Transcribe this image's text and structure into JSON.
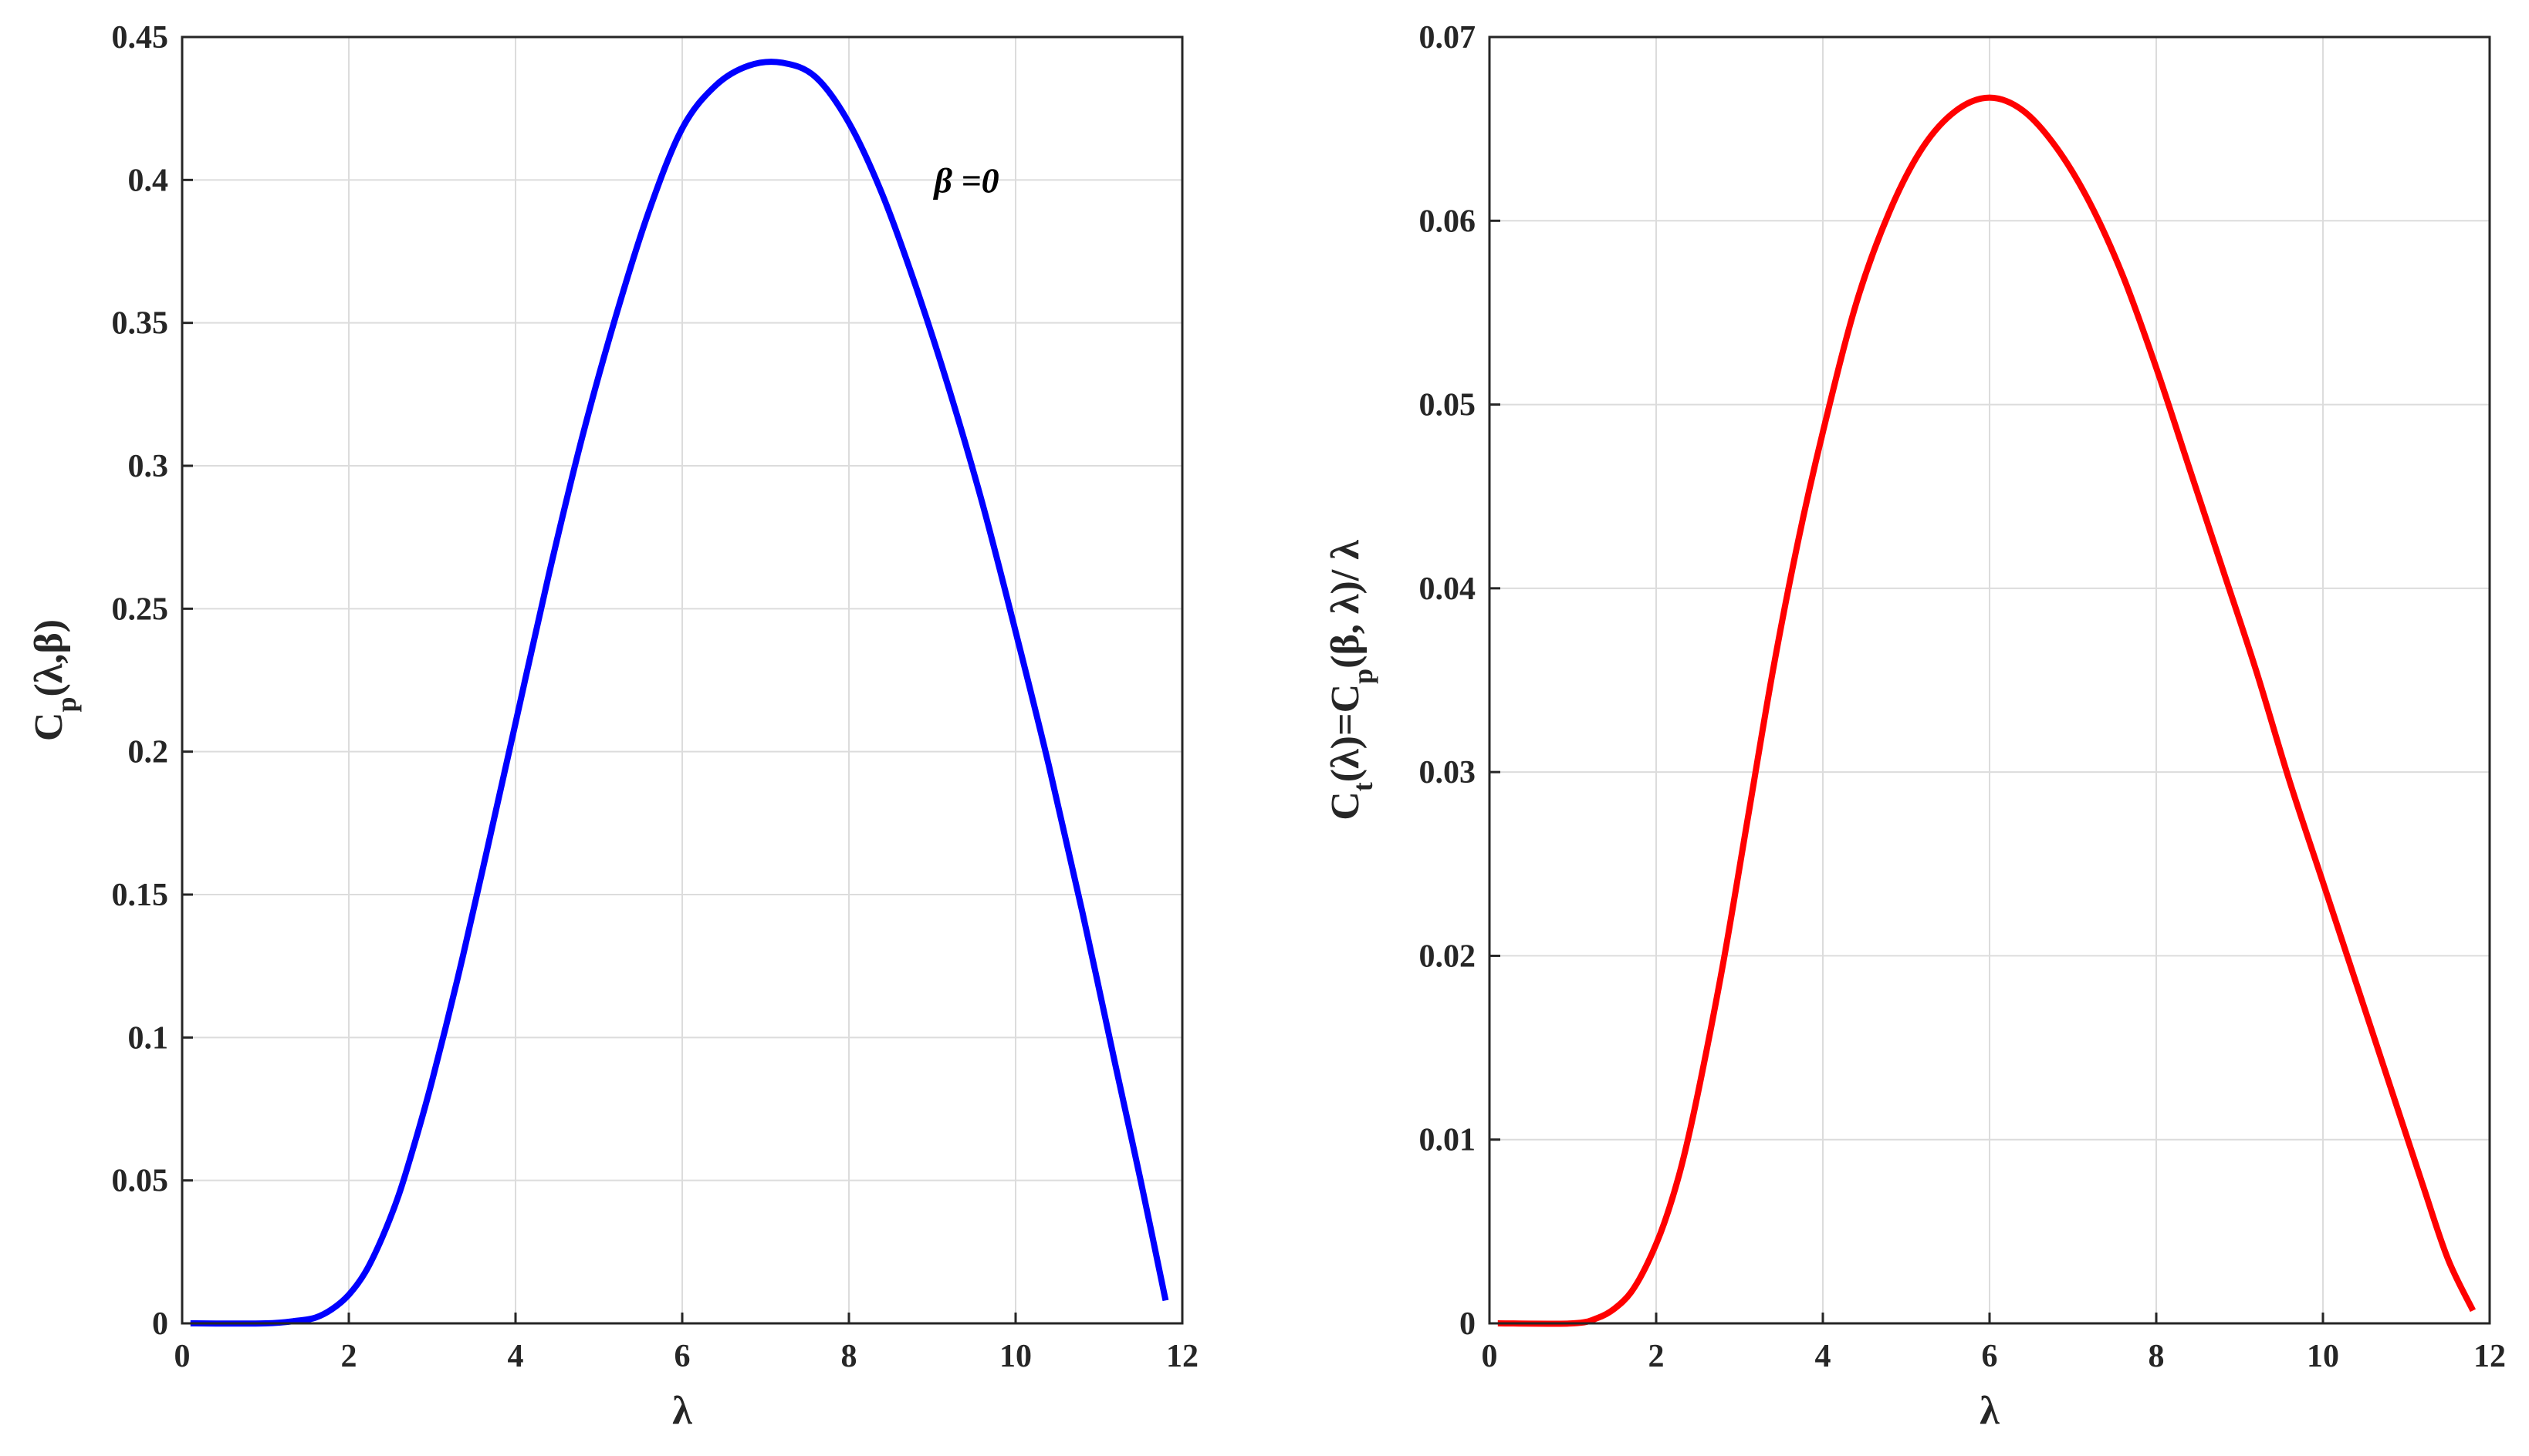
{
  "chart_data": [
    {
      "type": "line",
      "xlabel": "λ",
      "ylabel_parts": [
        "C",
        "p",
        "(λ,β)"
      ],
      "xlim": [
        0,
        12
      ],
      "ylim": [
        0,
        0.45
      ],
      "xticks": [
        0,
        2,
        4,
        6,
        8,
        10,
        12
      ],
      "xtick_labels": [
        "0",
        "2",
        "4",
        "6",
        "8",
        "10",
        "12"
      ],
      "yticks": [
        0,
        0.05,
        0.1,
        0.15,
        0.2,
        0.25,
        0.3,
        0.35,
        0.4,
        0.45
      ],
      "ytick_labels": [
        "0",
        "0.05",
        "0.1",
        "0.15",
        "0.2",
        "0.25",
        "0.3",
        "0.35",
        "0.4",
        "0.45"
      ],
      "grid": true,
      "annotation": {
        "text": "β =0",
        "x": 9.3,
        "y": 0.4
      },
      "series": [
        {
          "color": "#0000ff",
          "x": [
            0.1,
            1.0,
            1.4,
            1.6,
            1.8,
            2.0,
            2.2,
            2.4,
            2.6,
            2.8,
            3.0,
            3.3,
            3.6,
            4.0,
            4.4,
            4.8,
            5.2,
            5.6,
            6.0,
            6.4,
            6.8,
            7.2,
            7.6,
            8.0,
            8.4,
            8.8,
            9.2,
            9.6,
            10.0,
            10.4,
            10.8,
            11.2,
            11.5,
            11.8
          ],
          "y": [
            0.0,
            0.0,
            0.001,
            0.002,
            0.005,
            0.01,
            0.018,
            0.03,
            0.045,
            0.064,
            0.085,
            0.12,
            0.158,
            0.21,
            0.262,
            0.31,
            0.352,
            0.389,
            0.418,
            0.433,
            0.44,
            0.441,
            0.436,
            0.42,
            0.395,
            0.363,
            0.327,
            0.287,
            0.242,
            0.195,
            0.144,
            0.09,
            0.05,
            0.008
          ]
        }
      ]
    },
    {
      "type": "line",
      "xlabel": "λ",
      "ylabel_parts": [
        "C",
        "t",
        "(λ)=C",
        "p",
        "(β, λ)/ λ"
      ],
      "xlim": [
        0,
        12
      ],
      "ylim": [
        0,
        0.07
      ],
      "xticks": [
        0,
        2,
        4,
        6,
        8,
        10,
        12
      ],
      "xtick_labels": [
        "0",
        "2",
        "4",
        "6",
        "8",
        "10",
        "12"
      ],
      "yticks": [
        0,
        0.01,
        0.02,
        0.03,
        0.04,
        0.05,
        0.06,
        0.07
      ],
      "ytick_labels": [
        "0",
        "0.01",
        "0.02",
        "0.03",
        "0.04",
        "0.05",
        "0.06",
        "0.07"
      ],
      "grid": true,
      "series": [
        {
          "color": "#ff0000",
          "x": [
            0.1,
            1.0,
            1.3,
            1.5,
            1.7,
            1.9,
            2.1,
            2.3,
            2.5,
            2.8,
            3.1,
            3.4,
            3.7,
            4.0,
            4.4,
            4.8,
            5.2,
            5.6,
            6.0,
            6.4,
            6.8,
            7.2,
            7.6,
            8.0,
            8.4,
            8.8,
            9.2,
            9.6,
            10.0,
            10.4,
            10.8,
            11.2,
            11.5,
            11.8
          ],
          "y": [
            0.0,
            0.0,
            0.0003,
            0.0008,
            0.0017,
            0.0033,
            0.0055,
            0.0085,
            0.0125,
            0.0195,
            0.0275,
            0.0355,
            0.0425,
            0.0485,
            0.0555,
            0.0605,
            0.064,
            0.066,
            0.0667,
            0.066,
            0.064,
            0.061,
            0.057,
            0.052,
            0.0465,
            0.041,
            0.0355,
            0.0295,
            0.024,
            0.0185,
            0.013,
            0.0075,
            0.0035,
            0.0007
          ]
        }
      ]
    }
  ]
}
